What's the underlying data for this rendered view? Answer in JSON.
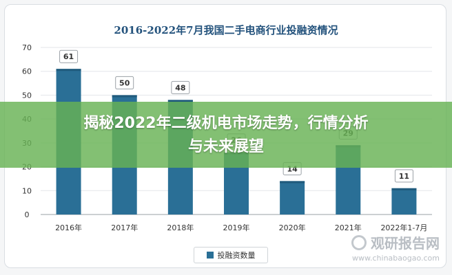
{
  "chart_data": {
    "type": "bar",
    "title": "2016-2022年7月我国二手电商行业投融资情况",
    "categories": [
      "2016年",
      "2017年",
      "2018年",
      "2019年",
      "2020年",
      "2021年",
      "2022年1-7月"
    ],
    "series": [
      {
        "name": "投融资数量",
        "values": [
          61,
          50,
          48,
          26,
          14,
          29,
          11
        ]
      }
    ],
    "ylim": [
      0,
      70
    ],
    "yticks": [
      0,
      10,
      20,
      30,
      40,
      50,
      60,
      70
    ],
    "grid": true,
    "legend": "bottom-center",
    "colors": {
      "bar": "#2a6f96",
      "bar_top": "#1f5a7c"
    }
  },
  "overlay": {
    "headline_line1": "揭秘2022年二级机电市场走势，行情分析",
    "headline_line2": "与未来展望",
    "color": "#68b254"
  },
  "watermark": {
    "brand": "观研报告网",
    "url": "www.chinabaogao.com",
    "icon": "magnifier-logo-icon"
  }
}
